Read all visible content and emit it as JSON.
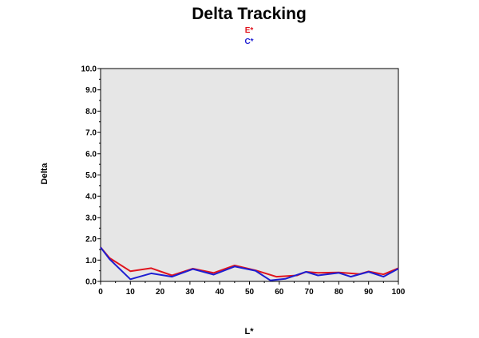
{
  "chart_data": {
    "type": "line",
    "title": "Delta Tracking",
    "xlabel": "L*",
    "ylabel": "Delta",
    "xlim": [
      0,
      100
    ],
    "ylim": [
      0,
      10
    ],
    "xticks": [
      "0",
      "10",
      "20",
      "30",
      "40",
      "50",
      "60",
      "70",
      "80",
      "90",
      "100"
    ],
    "yticks": [
      "0.0",
      "1.0",
      "2.0",
      "3.0",
      "4.0",
      "5.0",
      "6.0",
      "7.0",
      "8.0",
      "9.0",
      "10.0"
    ],
    "legend_position": "top-center",
    "plot_background": "#e6e6e6",
    "grid": false,
    "series": [
      {
        "name": "E*",
        "color": "#e0141e",
        "x": [
          0,
          3,
          10,
          17,
          24,
          31,
          38,
          45,
          52,
          59,
          66,
          69,
          73,
          80,
          87,
          90,
          95,
          100
        ],
        "y": [
          1.6,
          1.1,
          0.48,
          0.62,
          0.28,
          0.6,
          0.4,
          0.75,
          0.52,
          0.22,
          0.28,
          0.45,
          0.4,
          0.42,
          0.35,
          0.47,
          0.33,
          0.62
        ]
      },
      {
        "name": "C*",
        "color": "#1e1ed2",
        "x": [
          0,
          3,
          10,
          17,
          24,
          31,
          38,
          45,
          52,
          57,
          62,
          69,
          73,
          80,
          84,
          90,
          95,
          100
        ],
        "y": [
          1.6,
          1.05,
          0.1,
          0.38,
          0.22,
          0.58,
          0.32,
          0.7,
          0.5,
          0.05,
          0.12,
          0.45,
          0.28,
          0.4,
          0.22,
          0.45,
          0.22,
          0.6
        ]
      }
    ]
  }
}
